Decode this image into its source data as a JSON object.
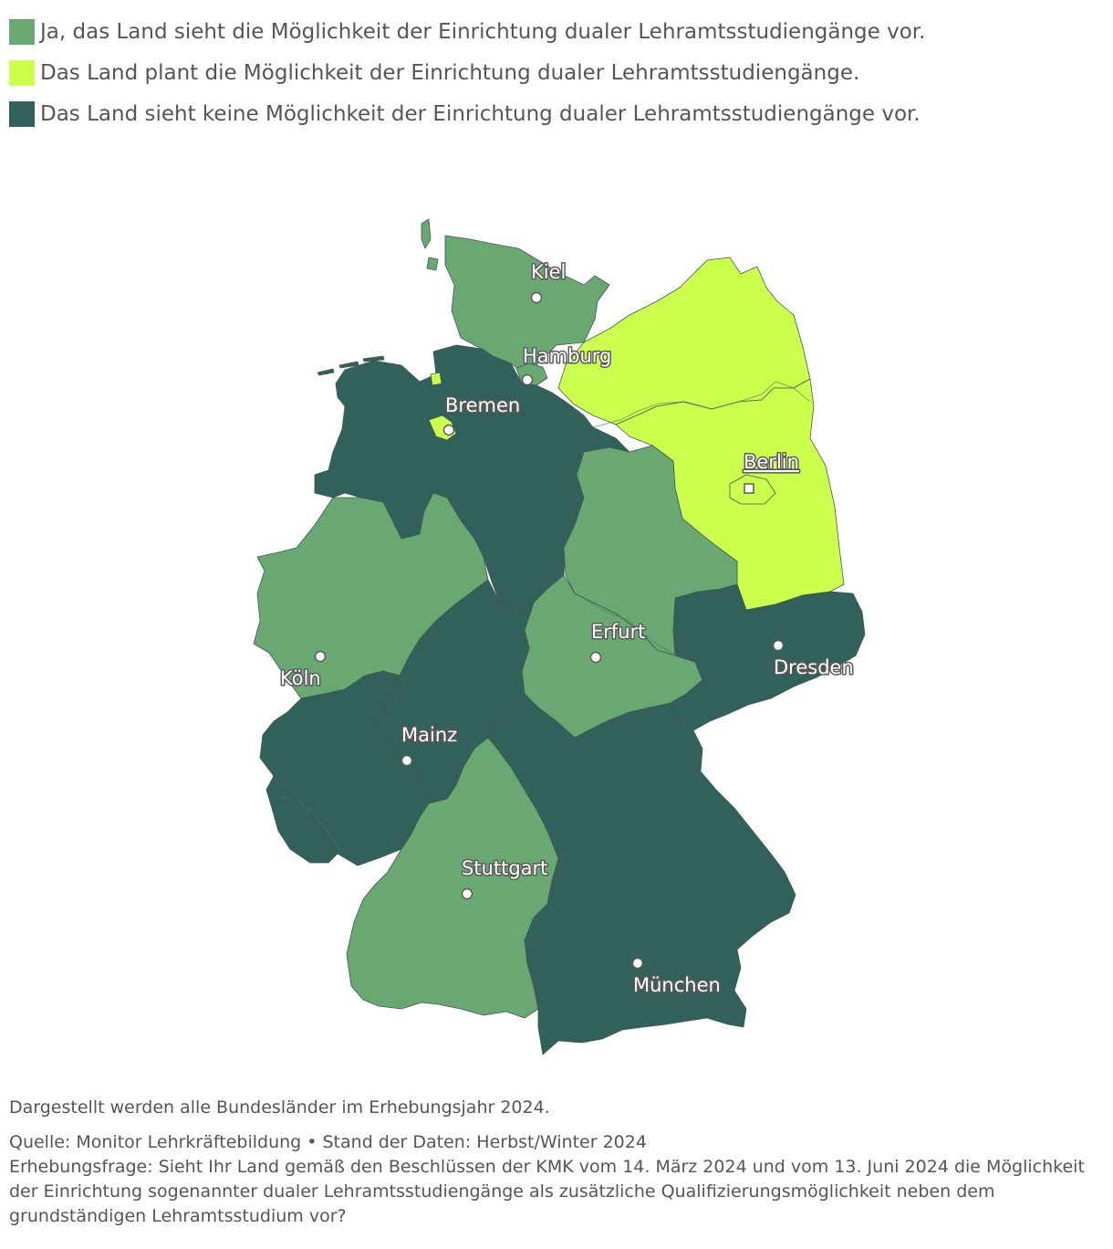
{
  "legend": {
    "items": [
      {
        "label": "Ja, das Land sieht die Möglichkeit der Einrichtung dualer Lehramtsstudiengänge vor.",
        "color": "#6aa873"
      },
      {
        "label": "Das Land plant die Möglichkeit der Einrichtung dualer Lehramtsstudiengänge.",
        "color": "#ccff4d"
      },
      {
        "label": "Das Land sieht keine Möglichkeit der Einrichtung dualer Lehramtsstudiengänge vor.",
        "color": "#32605a"
      }
    ]
  },
  "map": {
    "states": [
      {
        "name": "Schleswig-Holstein",
        "category": "ja"
      },
      {
        "name": "Hamburg",
        "category": "ja"
      },
      {
        "name": "Mecklenburg-Vorpommern",
        "category": "plant"
      },
      {
        "name": "Brandenburg",
        "category": "plant"
      },
      {
        "name": "Berlin",
        "category": "plant"
      },
      {
        "name": "Bremen",
        "category": "plant"
      },
      {
        "name": "Niedersachsen",
        "category": "keine"
      },
      {
        "name": "Nordrhein-Westfalen",
        "category": "ja"
      },
      {
        "name": "Sachsen-Anhalt",
        "category": "ja"
      },
      {
        "name": "Thüringen",
        "category": "ja"
      },
      {
        "name": "Sachsen",
        "category": "keine"
      },
      {
        "name": "Hessen",
        "category": "keine"
      },
      {
        "name": "Rheinland-Pfalz",
        "category": "keine"
      },
      {
        "name": "Saarland",
        "category": "keine"
      },
      {
        "name": "Baden-Württemberg",
        "category": "ja"
      },
      {
        "name": "Bayern",
        "category": "keine"
      }
    ],
    "cities": [
      {
        "name": "Kiel"
      },
      {
        "name": "Hamburg"
      },
      {
        "name": "Bremen"
      },
      {
        "name": "Berlin"
      },
      {
        "name": "Erfurt"
      },
      {
        "name": "Dresden"
      },
      {
        "name": "Köln"
      },
      {
        "name": "Mainz"
      },
      {
        "name": "Stuttgart"
      },
      {
        "name": "München"
      }
    ]
  },
  "footer": {
    "note": "Dargestellt werden alle Bundesländer im Erhebungsjahr 2024.",
    "source": "Quelle: Monitor Lehrkräftebildung • Stand der Daten: Herbst/Winter 2024",
    "question": "Erhebungsfrage: Sieht Ihr Land gemäß den Beschlüssen der KMK vom 14. März 2024 und vom 13. Juni 2024 die Möglichkeit der Einrichtung sogenannter dualer Lehramtsstudiengänge als zusätzliche Qualifizierungsmöglichkeit neben dem grundständigen Lehramtsstudium vor?"
  }
}
